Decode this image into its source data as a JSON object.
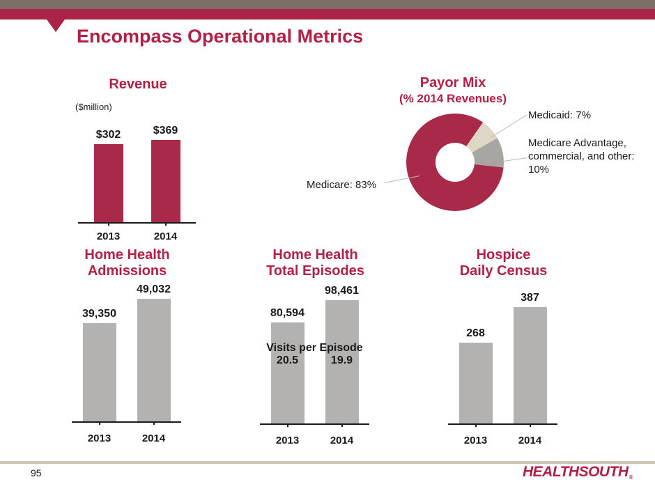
{
  "slide": {
    "title": "Encompass Operational Metrics",
    "page_number": "95",
    "logo_text": "HEALTHSOUTH",
    "logo_mark": "®"
  },
  "colors": {
    "brand_crimson": "#b22045",
    "header_band_crimson": "#ab2347",
    "header_taupe": "#7d6e66",
    "bar_crimson": "#a92a48",
    "bar_gray": "#b3b2b0",
    "donut_beige": "#ddd7c6",
    "donut_gray": "#a7a6a3",
    "footer_tan": "#ccc5b3",
    "axis_black": "#1a1a1a"
  },
  "chart_data": [
    {
      "id": "revenue",
      "type": "bar",
      "title": "Revenue",
      "unit_label": "($million)",
      "categories": [
        "2013",
        "2014"
      ],
      "values": [
        302,
        369
      ],
      "value_labels": [
        "$302",
        "$369"
      ],
      "bar_color": "#a92a48",
      "ylim": [
        0,
        369
      ],
      "grid": false
    },
    {
      "id": "payor_mix",
      "type": "donut",
      "title": "Payor Mix",
      "subtitle": "(% 2014 Revenues)",
      "start_angle_deg": 35,
      "slices": [
        {
          "name": "Medicaid",
          "value": 7,
          "label": "Medicaid: 7%",
          "color": "#ddd7c6"
        },
        {
          "name": "Medicare Advantage, commercial, and other",
          "value": 10,
          "label": "Medicare Advantage, commercial, and other: 10%",
          "color": "#a7a6a3"
        },
        {
          "name": "Medicare",
          "value": 83,
          "label": "Medicare: 83%",
          "color": "#a92a48"
        }
      ],
      "legend_position": "callout-labels"
    },
    {
      "id": "admissions",
      "type": "bar",
      "title_lines": [
        "Home Health",
        "Admissions"
      ],
      "categories": [
        "2013",
        "2014"
      ],
      "values": [
        39350,
        49032
      ],
      "value_labels": [
        "39,350",
        "49,032"
      ],
      "bar_color": "#b3b2b0",
      "ylim": [
        0,
        49032
      ],
      "grid": false
    },
    {
      "id": "episodes",
      "type": "bar",
      "title_lines": [
        "Home Health",
        "Total Episodes"
      ],
      "categories": [
        "2013",
        "2014"
      ],
      "values": [
        80594,
        98461
      ],
      "value_labels": [
        "80,594",
        "98,461"
      ],
      "annotation": {
        "title": "Visits per Episode",
        "values": [
          "20.5",
          "19.9"
        ]
      },
      "bar_color": "#b3b2b0",
      "ylim": [
        0,
        98461
      ],
      "grid": false
    },
    {
      "id": "hospice",
      "type": "bar",
      "title_lines": [
        "Hospice",
        "Daily Census"
      ],
      "categories": [
        "2013",
        "2014"
      ],
      "values": [
        268,
        387
      ],
      "value_labels": [
        "268",
        "387"
      ],
      "bar_color": "#b3b2b0",
      "ylim": [
        0,
        387
      ],
      "grid": false
    }
  ]
}
